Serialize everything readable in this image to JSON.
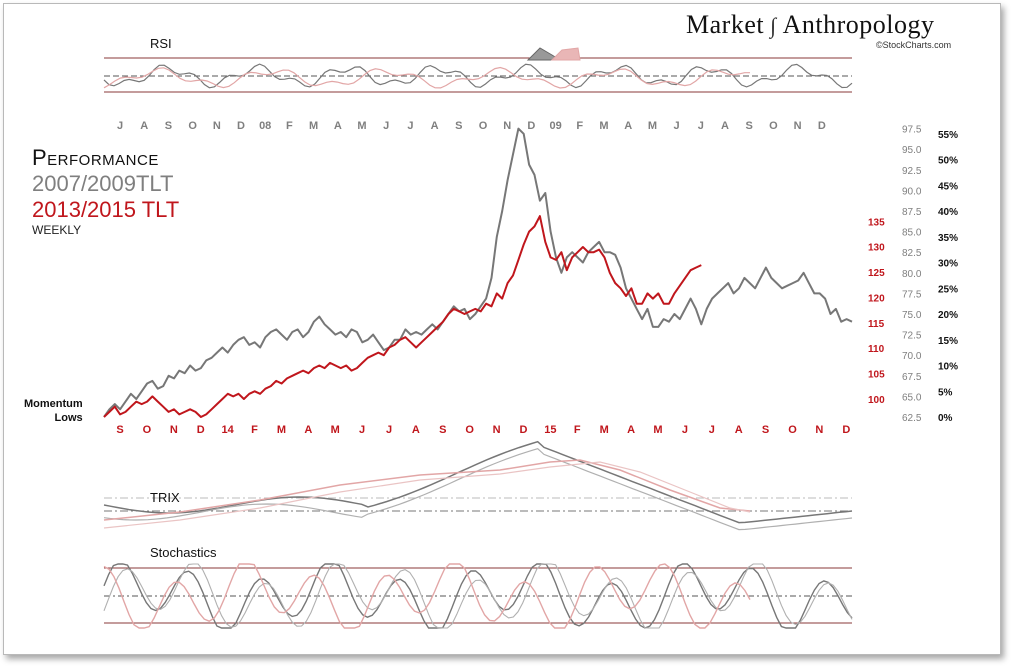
{
  "header": {
    "brand_left": "Market",
    "brand_right": "Anthropology",
    "copyright": "©StockCharts.com"
  },
  "legend": {
    "title": "Performance",
    "series_2007": "2007/2009TLT",
    "series_2013": "2013/2015 TLT",
    "frequency": "WEEKLY"
  },
  "annotations": {
    "momentum_line1": "Momentum",
    "momentum_line2": "Lows"
  },
  "panels": {
    "rsi_label": "RSI",
    "trix_label": "TRIX",
    "stoch_label": "Stochastics"
  },
  "colors": {
    "gray_series": "#777777",
    "red_series": "#c0161c",
    "gray_light": "#b0b0b0",
    "red_light": "#e2a6a6",
    "top_axis": "#7f7f7f",
    "bottom_axis": "#c0161c"
  },
  "chart_data": {
    "type": "line",
    "x_top_ticks": [
      "J",
      "A",
      "S",
      "O",
      "N",
      "D",
      "08",
      "F",
      "M",
      "A",
      "M",
      "J",
      "J",
      "A",
      "S",
      "O",
      "N",
      "D",
      "09",
      "F",
      "M",
      "A",
      "M",
      "J",
      "J",
      "A",
      "S",
      "O",
      "N",
      "D"
    ],
    "x_bottom_ticks": [
      "S",
      "O",
      "N",
      "D",
      "14",
      "F",
      "M",
      "A",
      "M",
      "J",
      "J",
      "A",
      "S",
      "O",
      "N",
      "D",
      "15",
      "F",
      "M",
      "A",
      "M",
      "J",
      "J",
      "A",
      "S",
      "O",
      "N",
      "D"
    ],
    "y_price_2007": [
      62.5,
      65.0,
      67.5,
      70.0,
      72.5,
      75.0,
      77.5,
      80.0,
      82.5,
      85.0,
      87.5,
      90.0,
      92.5,
      95.0,
      97.5
    ],
    "y_price_2007_labels": [
      "62.5",
      "65.0",
      "67.5",
      "70.0",
      "72.5",
      "75.0",
      "77.5",
      "80.0",
      "82.5",
      "85.0",
      "87.5",
      "90.0",
      "92.5",
      "95.0",
      "97.5"
    ],
    "y_price_2013": [
      100,
      105,
      110,
      115,
      120,
      125,
      130,
      135
    ],
    "y_price_2013_labels": [
      "100",
      "105",
      "110",
      "115",
      "120",
      "125",
      "130",
      "135"
    ],
    "y_percent_labels": [
      "0%",
      "5%",
      "10%",
      "15%",
      "20%",
      "25%",
      "30%",
      "35%",
      "40%",
      "45%",
      "50%",
      "55%"
    ],
    "y_percent": [
      0,
      5,
      10,
      15,
      20,
      25,
      30,
      35,
      40,
      45,
      50,
      55
    ],
    "series": [
      {
        "name": "2007/2009TLT",
        "weekly_performance_pct": [
          0,
          1.5,
          2.5,
          1.5,
          3,
          4.5,
          3.5,
          5,
          6.5,
          7,
          5.5,
          6,
          8,
          7.5,
          9,
          8.5,
          10,
          9,
          9.5,
          11,
          11.5,
          12.5,
          13.5,
          12.5,
          14,
          15,
          15.5,
          14,
          14.5,
          13.5,
          15.5,
          16.5,
          17,
          16,
          15,
          16.5,
          17,
          15.5,
          16.5,
          18.5,
          19.5,
          18,
          17,
          16,
          16.5,
          15.5,
          17,
          16.5,
          14.5,
          15,
          16,
          14.5,
          13,
          13.5,
          15,
          15,
          17,
          16,
          16.5,
          16,
          17,
          18,
          17,
          18.5,
          20,
          21.5,
          20.5,
          21,
          19,
          20,
          21.5,
          23,
          27,
          35,
          40,
          46,
          51,
          56,
          55,
          49,
          47,
          42,
          43.5,
          36,
          31,
          28,
          31,
          32,
          31,
          30,
          32,
          33,
          34,
          32,
          32,
          31.5,
          29,
          25,
          23,
          21,
          19,
          21,
          17.5,
          17.5,
          19,
          18.5,
          20,
          19,
          21,
          23,
          21,
          18,
          21,
          23,
          24,
          25,
          26,
          24,
          25,
          27,
          26,
          25,
          27,
          29,
          27,
          26,
          25,
          25.5,
          26,
          26.5,
          28,
          26,
          24,
          24,
          23,
          20,
          21,
          18.5,
          19,
          18.5
        ]
      },
      {
        "name": "2013/2015 TLT",
        "weekly_performance_pct": [
          0,
          1,
          2,
          0.5,
          1,
          2,
          3,
          2.5,
          3,
          4,
          3,
          2,
          1,
          1.5,
          0.5,
          1,
          1.5,
          1,
          0,
          0.5,
          1.5,
          2.5,
          3.5,
          4.5,
          4,
          4.5,
          3.5,
          4.5,
          5,
          4.5,
          5.5,
          6,
          7,
          6.5,
          7.5,
          8,
          8.5,
          9,
          8.5,
          9.5,
          10,
          9.5,
          10.5,
          10,
          9.5,
          10,
          9,
          9.5,
          10.5,
          11.5,
          12,
          12.5,
          12,
          13.5,
          14,
          15,
          15.5,
          14.5,
          13.5,
          14.5,
          15.5,
          16.5,
          17.5,
          18.5,
          20,
          21,
          20.5,
          20,
          20.5,
          21,
          20.5,
          22,
          21.5,
          24,
          23,
          26,
          27.5,
          30.5,
          33.5,
          36,
          37,
          39,
          34,
          31,
          30.5,
          32,
          28.5,
          31,
          32,
          33,
          32,
          32,
          32.5,
          31,
          28,
          26,
          25,
          23.5,
          25,
          22,
          22,
          24,
          23,
          24,
          22,
          22,
          24,
          25.5,
          27,
          28.5,
          29,
          29.5
        ]
      }
    ],
    "indicator_panels": [
      "RSI",
      "TRIX",
      "Stochastics"
    ]
  }
}
